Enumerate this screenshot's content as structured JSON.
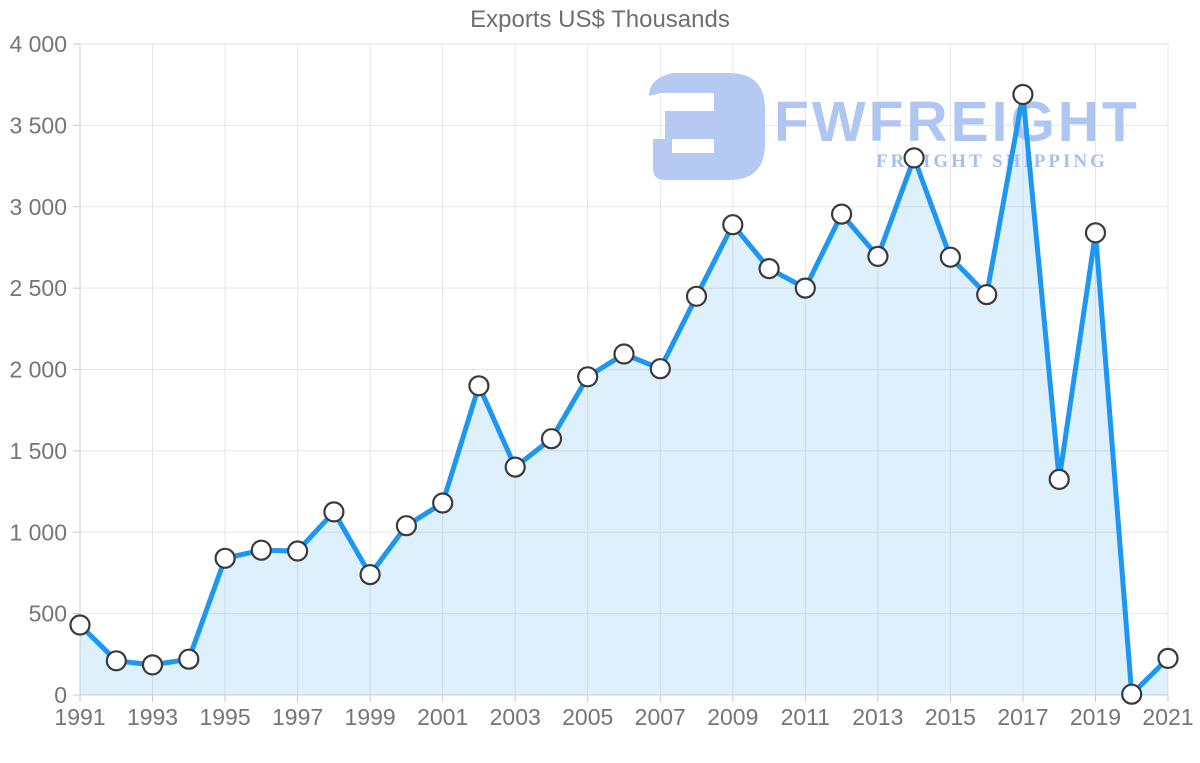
{
  "watermark": {
    "brand": "FWFREIGHT",
    "tagline": "FREIGHT SHIPPING",
    "icon_color": "#b4caf3"
  },
  "chart_data": {
    "type": "area",
    "title": "Exports US$ Thousands",
    "xlabel": "",
    "ylabel": "",
    "x": [
      1991,
      1992,
      1993,
      1994,
      1995,
      1996,
      1997,
      1998,
      1999,
      2000,
      2001,
      2002,
      2003,
      2004,
      2005,
      2006,
      2007,
      2008,
      2009,
      2010,
      2011,
      2012,
      2013,
      2014,
      2015,
      2016,
      2017,
      2018,
      2019,
      2020,
      2021
    ],
    "series": [
      {
        "name": "Exports US$ Thousands",
        "values": [
          430,
          210,
          185,
          220,
          840,
          890,
          885,
          1125,
          740,
          1040,
          1180,
          1900,
          1400,
          1575,
          1955,
          2095,
          2005,
          2450,
          2890,
          2620,
          2500,
          2955,
          2695,
          3300,
          2690,
          2460,
          3690,
          1325,
          2840,
          5,
          225
        ]
      }
    ],
    "ylim": [
      0,
      4000
    ],
    "ytick_step": 500,
    "xtick_step": 2,
    "grid": true,
    "legend": "none",
    "x_tick_labels": [
      "1991",
      "1993",
      "1995",
      "1997",
      "1999",
      "2001",
      "2003",
      "2005",
      "2007",
      "2009",
      "2011",
      "2013",
      "2015",
      "2017",
      "2019",
      "2021"
    ],
    "y_tick_labels": [
      "0",
      "500",
      "1 000",
      "1 500",
      "2 000",
      "2 500",
      "3 000",
      "3 500",
      "4 000"
    ],
    "colors": {
      "line": "#1e96f3",
      "fill": "#1e96f3",
      "fill_opacity": "0.14",
      "grid": "#e6e6e6",
      "axis_line": "#d2d2d2",
      "tick": "#c9c9c9",
      "axis_label": "#757575",
      "title": "#6f6f6f",
      "marker_fill": "#ffffff",
      "marker_stroke": "#3a3a3a"
    }
  }
}
